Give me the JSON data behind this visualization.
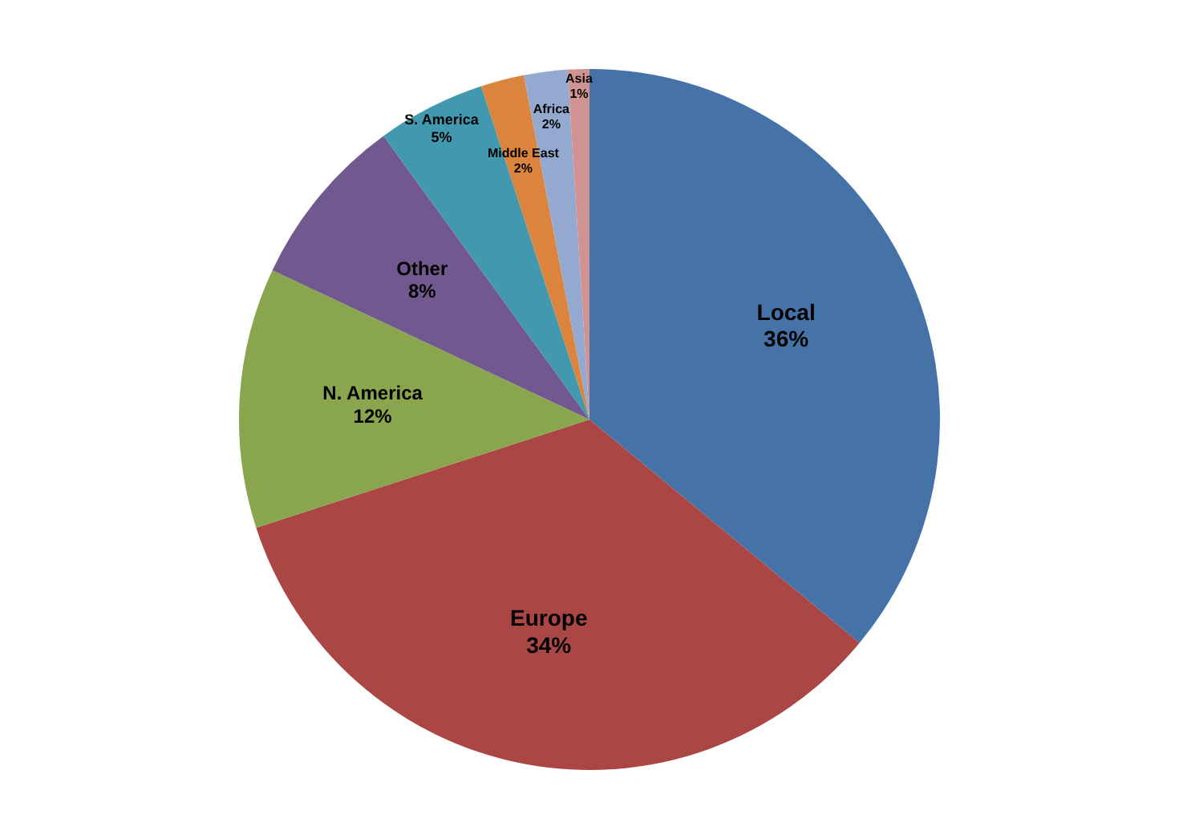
{
  "chart_data": {
    "type": "pie",
    "categories": [
      "Local",
      "Europe",
      "N. America",
      "Other",
      "S. America",
      "Middle East",
      "Africa",
      "Asia"
    ],
    "values": [
      36,
      34,
      12,
      8,
      5,
      2,
      2,
      1
    ],
    "colors": [
      "#4572a7",
      "#aa4643",
      "#89a54e",
      "#71588f",
      "#4198af",
      "#db843d",
      "#93a9cf",
      "#d19392"
    ],
    "value_labels": [
      "36%",
      "34%",
      "12%",
      "8%",
      "5%",
      "2%",
      "2%",
      "1%"
    ],
    "legend": false
  }
}
